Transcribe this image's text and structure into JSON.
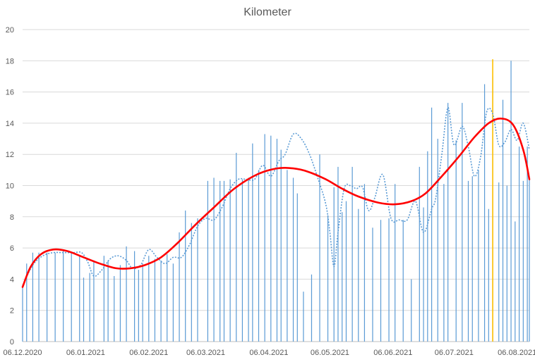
{
  "chart_data": {
    "type": "bar",
    "title": "Kilometer",
    "xlabel": "",
    "ylabel": "",
    "grid": true,
    "ylim": [
      0,
      20
    ],
    "yticks": [
      0,
      2,
      4,
      6,
      8,
      10,
      12,
      14,
      16,
      18,
      20
    ],
    "xlim": [
      "2020-12-06",
      "2021-08-12"
    ],
    "xticks": [
      "06.12.2020",
      "06.01.2021",
      "06.02.2021",
      "06.03.2021",
      "06.04.2021",
      "06.05.2021",
      "06.06.2021",
      "06.07.2021",
      "06.08.2021"
    ],
    "colors": {
      "bars": "#5b9bd5",
      "moving_average": "#5b9bd5",
      "trend": "#ff0000",
      "marker": "#ffc000",
      "grid": "#d9d9d9"
    },
    "series": [
      {
        "type": "bar",
        "x": [
          "2020-12-06",
          "2020-12-08",
          "2020-12-11",
          "2020-12-14",
          "2020-12-18",
          "2020-12-22",
          "2020-12-26",
          "2020-12-30",
          "2021-01-03",
          "2021-01-05",
          "2021-01-08",
          "2021-01-10",
          "2021-01-15",
          "2021-01-17",
          "2021-01-20",
          "2021-01-23",
          "2021-01-26",
          "2021-01-30",
          "2021-02-01",
          "2021-02-03",
          "2021-02-06",
          "2021-02-09",
          "2021-02-12",
          "2021-02-15",
          "2021-02-18",
          "2021-02-21",
          "2021-02-24",
          "2021-02-27",
          "2021-03-02",
          "2021-03-07",
          "2021-03-10",
          "2021-03-13",
          "2021-03-15",
          "2021-03-18",
          "2021-03-21",
          "2021-03-24",
          "2021-03-27",
          "2021-03-29",
          "2021-04-01",
          "2021-04-04",
          "2021-04-07",
          "2021-04-10",
          "2021-04-12",
          "2021-04-15",
          "2021-04-18",
          "2021-04-20",
          "2021-04-23",
          "2021-04-27",
          "2021-05-01",
          "2021-05-05",
          "2021-05-08",
          "2021-05-10",
          "2021-05-12",
          "2021-05-14",
          "2021-05-17",
          "2021-05-20",
          "2021-05-23",
          "2021-05-27",
          "2021-05-31",
          "2021-06-04",
          "2021-06-07",
          "2021-06-11",
          "2021-06-15",
          "2021-06-19",
          "2021-06-21",
          "2021-06-23",
          "2021-06-25",
          "2021-06-28",
          "2021-07-01",
          "2021-07-03",
          "2021-07-07",
          "2021-07-10",
          "2021-07-13",
          "2021-07-15",
          "2021-07-18",
          "2021-07-21",
          "2021-07-23",
          "2021-07-25",
          "2021-07-28",
          "2021-07-30",
          "2021-08-01",
          "2021-08-03",
          "2021-08-05",
          "2021-08-07",
          "2021-08-09",
          "2021-08-11",
          "2021-08-12"
        ],
        "values": [
          3.5,
          5.0,
          5.7,
          5.7,
          5.7,
          5.7,
          5.8,
          5.7,
          5.5,
          4.1,
          4.4,
          5.2,
          5.5,
          5.2,
          4.2,
          4.9,
          6.1,
          5.8,
          4.6,
          5.0,
          5.5,
          5.3,
          5.2,
          5.6,
          5.0,
          7.0,
          8.4,
          7.6,
          7.9,
          10.3,
          10.5,
          10.3,
          10.3,
          10.4,
          12.1,
          10.4,
          10.5,
          12.7,
          11.0,
          13.3,
          13.2,
          13.0,
          12.3,
          11.0,
          10.5,
          9.5,
          3.2,
          4.3,
          12.0,
          8.1,
          9.9,
          11.2,
          8.3,
          9.0,
          11.2,
          8.5,
          10.1,
          7.3,
          7.8,
          7.9,
          10.1,
          7.8,
          4.0,
          11.2,
          8.6,
          12.2,
          15.0,
          13.0,
          10.1,
          15.3,
          12.9,
          15.3,
          10.3,
          10.6,
          11.0,
          16.5,
          8.5,
          17.0,
          10.2,
          15.5,
          10.0,
          18.0,
          7.7,
          12.5,
          10.3,
          12.5,
          10.5
        ]
      },
      {
        "type": "line",
        "style": "dotted",
        "x": [
          "2020-12-06",
          "2020-12-11",
          "2020-12-16",
          "2020-12-21",
          "2020-12-26",
          "2020-12-31",
          "2021-01-04",
          "2021-01-07",
          "2021-01-10",
          "2021-01-14",
          "2021-01-18",
          "2021-01-22",
          "2021-01-26",
          "2021-01-29",
          "2021-02-02",
          "2021-02-06",
          "2021-02-10",
          "2021-02-14",
          "2021-02-18",
          "2021-02-22",
          "2021-02-26",
          "2021-03-02",
          "2021-03-06",
          "2021-03-10",
          "2021-03-14",
          "2021-03-18",
          "2021-03-22",
          "2021-03-26",
          "2021-03-30",
          "2021-04-03",
          "2021-04-07",
          "2021-04-11",
          "2021-04-14",
          "2021-04-18",
          "2021-04-22",
          "2021-04-26",
          "2021-04-30",
          "2021-05-04",
          "2021-05-06",
          "2021-05-08",
          "2021-05-10",
          "2021-05-13",
          "2021-05-16",
          "2021-05-19",
          "2021-05-22",
          "2021-05-25",
          "2021-05-28",
          "2021-06-01",
          "2021-06-05",
          "2021-06-09",
          "2021-06-13",
          "2021-06-17",
          "2021-06-21",
          "2021-06-25",
          "2021-06-27",
          "2021-06-30",
          "2021-07-03",
          "2021-07-06",
          "2021-07-10",
          "2021-07-13",
          "2021-07-16",
          "2021-07-19",
          "2021-07-22",
          "2021-07-25",
          "2021-07-28",
          "2021-07-31",
          "2021-08-03",
          "2021-08-06",
          "2021-08-09",
          "2021-08-12"
        ],
        "values": [
          3.6,
          4.9,
          5.5,
          5.7,
          5.7,
          5.7,
          5.7,
          5.1,
          4.2,
          4.6,
          5.3,
          5.5,
          5.2,
          4.7,
          4.9,
          5.9,
          5.4,
          5.0,
          5.4,
          5.4,
          6.2,
          7.4,
          7.9,
          7.8,
          8.6,
          9.8,
          10.4,
          10.4,
          10.4,
          11.3,
          10.6,
          11.6,
          12.0,
          13.3,
          13.0,
          12.0,
          10.5,
          8.8,
          7.0,
          4.8,
          7.0,
          9.8,
          10.0,
          9.8,
          9.9,
          8.4,
          9.2,
          10.7,
          7.9,
          7.8,
          7.8,
          9.0,
          7.0,
          8.5,
          9.2,
          12.0,
          15.0,
          12.6,
          13.8,
          12.5,
          10.6,
          11.8,
          14.7,
          14.6,
          12.6,
          12.8,
          13.6,
          12.9,
          14.0,
          12.3
        ]
      },
      {
        "type": "line",
        "style": "smooth",
        "x": [
          "2020-12-06",
          "2020-12-10",
          "2020-12-15",
          "2020-12-21",
          "2020-12-28",
          "2021-01-05",
          "2021-01-13",
          "2021-01-21",
          "2021-01-28",
          "2021-02-04",
          "2021-02-12",
          "2021-02-20",
          "2021-03-01",
          "2021-03-10",
          "2021-03-20",
          "2021-03-31",
          "2021-04-10",
          "2021-04-18",
          "2021-04-25",
          "2021-05-04",
          "2021-05-12",
          "2021-05-20",
          "2021-05-30",
          "2021-06-07",
          "2021-06-15",
          "2021-06-22",
          "2021-06-30",
          "2021-07-08",
          "2021-07-16",
          "2021-07-23",
          "2021-07-29",
          "2021-08-04",
          "2021-08-09",
          "2021-08-12"
        ],
        "values": [
          3.5,
          4.8,
          5.6,
          5.9,
          5.8,
          5.4,
          5.0,
          4.7,
          4.7,
          4.9,
          5.4,
          6.3,
          7.5,
          8.6,
          9.8,
          10.7,
          11.1,
          11.1,
          10.9,
          10.4,
          9.8,
          9.3,
          8.9,
          8.8,
          9.0,
          9.5,
          10.6,
          11.8,
          13.1,
          14.0,
          14.3,
          13.9,
          12.3,
          10.4
        ]
      }
    ],
    "marker_line": {
      "x": "2021-07-25",
      "y": 18.1
    }
  }
}
